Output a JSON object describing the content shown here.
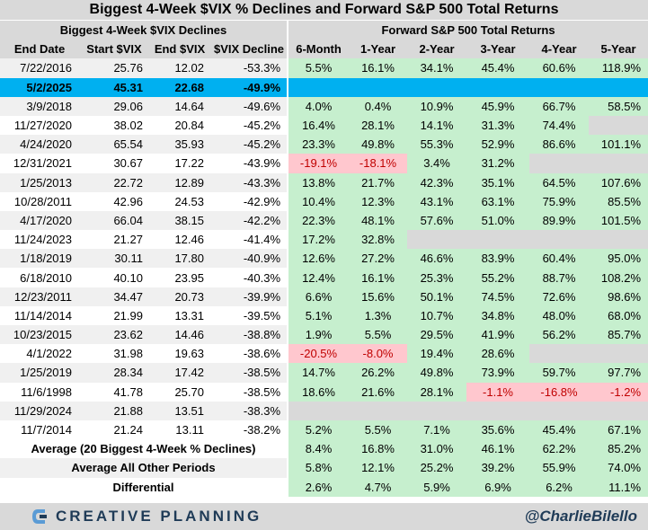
{
  "title": "Biggest 4-Week $VIX % Declines and Forward S&P 500 Total Returns",
  "left_section_title": "Biggest 4-Week $VIX Declines",
  "right_section_title": "Forward S&P 500 Total Returns",
  "footer": {
    "brand": "CREATIVE PLANNING",
    "handle": "@CharlieBilello"
  },
  "colors": {
    "positive": "#c6efce",
    "negative": "#ffc7ce",
    "highlight": "#00b0f0",
    "header": "#d9d9d9"
  },
  "chart_data": {
    "type": "table",
    "title": "Biggest 4-Week $VIX % Declines and Forward S&P 500 Total Returns",
    "columns": [
      "End Date",
      "Start $VIX",
      "End $VIX",
      "$VIX Decline",
      "6-Month",
      "1-Year",
      "2-Year",
      "3-Year",
      "4-Year",
      "5-Year"
    ],
    "rows": [
      {
        "end_date": "7/22/2016",
        "start_vix": "25.76",
        "end_vix": "12.02",
        "decline": "-53.3%",
        "returns": [
          "5.5%",
          "16.1%",
          "34.1%",
          "45.4%",
          "60.6%",
          "118.9%"
        ]
      },
      {
        "end_date": "5/2/2025",
        "start_vix": "45.31",
        "end_vix": "22.68",
        "decline": "-49.9%",
        "returns": [
          "",
          "",
          "",
          "",
          "",
          ""
        ],
        "highlight": true
      },
      {
        "end_date": "3/9/2018",
        "start_vix": "29.06",
        "end_vix": "14.64",
        "decline": "-49.6%",
        "returns": [
          "4.0%",
          "0.4%",
          "10.9%",
          "45.9%",
          "66.7%",
          "58.5%"
        ]
      },
      {
        "end_date": "11/27/2020",
        "start_vix": "38.02",
        "end_vix": "20.84",
        "decline": "-45.2%",
        "returns": [
          "16.4%",
          "28.1%",
          "14.1%",
          "31.3%",
          "74.4%",
          ""
        ]
      },
      {
        "end_date": "4/24/2020",
        "start_vix": "65.54",
        "end_vix": "35.93",
        "decline": "-45.2%",
        "returns": [
          "23.3%",
          "49.8%",
          "55.3%",
          "52.9%",
          "86.6%",
          "101.1%"
        ]
      },
      {
        "end_date": "12/31/2021",
        "start_vix": "30.67",
        "end_vix": "17.22",
        "decline": "-43.9%",
        "returns": [
          "-19.1%",
          "-18.1%",
          "3.4%",
          "31.2%",
          "",
          ""
        ]
      },
      {
        "end_date": "1/25/2013",
        "start_vix": "22.72",
        "end_vix": "12.89",
        "decline": "-43.3%",
        "returns": [
          "13.8%",
          "21.7%",
          "42.3%",
          "35.1%",
          "64.5%",
          "107.6%"
        ]
      },
      {
        "end_date": "10/28/2011",
        "start_vix": "42.96",
        "end_vix": "24.53",
        "decline": "-42.9%",
        "returns": [
          "10.4%",
          "12.3%",
          "43.1%",
          "63.1%",
          "75.9%",
          "85.5%"
        ]
      },
      {
        "end_date": "4/17/2020",
        "start_vix": "66.04",
        "end_vix": "38.15",
        "decline": "-42.2%",
        "returns": [
          "22.3%",
          "48.1%",
          "57.6%",
          "51.0%",
          "89.9%",
          "101.5%"
        ]
      },
      {
        "end_date": "11/24/2023",
        "start_vix": "21.27",
        "end_vix": "12.46",
        "decline": "-41.4%",
        "returns": [
          "17.2%",
          "32.8%",
          "",
          "",
          "",
          ""
        ]
      },
      {
        "end_date": "1/18/2019",
        "start_vix": "30.11",
        "end_vix": "17.80",
        "decline": "-40.9%",
        "returns": [
          "12.6%",
          "27.2%",
          "46.6%",
          "83.9%",
          "60.4%",
          "95.0%"
        ]
      },
      {
        "end_date": "6/18/2010",
        "start_vix": "40.10",
        "end_vix": "23.95",
        "decline": "-40.3%",
        "returns": [
          "12.4%",
          "16.1%",
          "25.3%",
          "55.2%",
          "88.7%",
          "108.2%"
        ]
      },
      {
        "end_date": "12/23/2011",
        "start_vix": "34.47",
        "end_vix": "20.73",
        "decline": "-39.9%",
        "returns": [
          "6.6%",
          "15.6%",
          "50.1%",
          "74.5%",
          "72.6%",
          "98.6%"
        ]
      },
      {
        "end_date": "11/14/2014",
        "start_vix": "21.99",
        "end_vix": "13.31",
        "decline": "-39.5%",
        "returns": [
          "5.1%",
          "1.3%",
          "10.7%",
          "34.8%",
          "48.0%",
          "68.0%"
        ]
      },
      {
        "end_date": "10/23/2015",
        "start_vix": "23.62",
        "end_vix": "14.46",
        "decline": "-38.8%",
        "returns": [
          "1.9%",
          "5.5%",
          "29.5%",
          "41.9%",
          "56.2%",
          "85.7%"
        ]
      },
      {
        "end_date": "4/1/2022",
        "start_vix": "31.98",
        "end_vix": "19.63",
        "decline": "-38.6%",
        "returns": [
          "-20.5%",
          "-8.0%",
          "19.4%",
          "28.6%",
          "",
          ""
        ]
      },
      {
        "end_date": "1/25/2019",
        "start_vix": "28.34",
        "end_vix": "17.42",
        "decline": "-38.5%",
        "returns": [
          "14.7%",
          "26.2%",
          "49.8%",
          "73.9%",
          "59.7%",
          "97.7%"
        ]
      },
      {
        "end_date": "11/6/1998",
        "start_vix": "41.78",
        "end_vix": "25.70",
        "decline": "-38.5%",
        "returns": [
          "18.6%",
          "21.6%",
          "28.1%",
          "-1.1%",
          "-16.8%",
          "-1.2%"
        ]
      },
      {
        "end_date": "11/29/2024",
        "start_vix": "21.88",
        "end_vix": "13.51",
        "decline": "-38.3%",
        "returns": [
          "",
          "",
          "",
          "",
          "",
          ""
        ]
      },
      {
        "end_date": "11/7/2014",
        "start_vix": "21.24",
        "end_vix": "13.11",
        "decline": "-38.2%",
        "returns": [
          "5.2%",
          "5.5%",
          "7.1%",
          "35.6%",
          "45.4%",
          "67.1%"
        ]
      }
    ],
    "summary": [
      {
        "label": "Average (20 Biggest 4-Week % Declines)",
        "values": [
          "8.4%",
          "16.8%",
          "31.0%",
          "46.1%",
          "62.2%",
          "85.2%"
        ]
      },
      {
        "label": "Average All Other Periods",
        "values": [
          "5.8%",
          "12.1%",
          "25.2%",
          "39.2%",
          "55.9%",
          "74.0%"
        ]
      },
      {
        "label": "Differential",
        "values": [
          "2.6%",
          "4.7%",
          "5.9%",
          "6.9%",
          "6.2%",
          "11.1%"
        ]
      }
    ]
  }
}
